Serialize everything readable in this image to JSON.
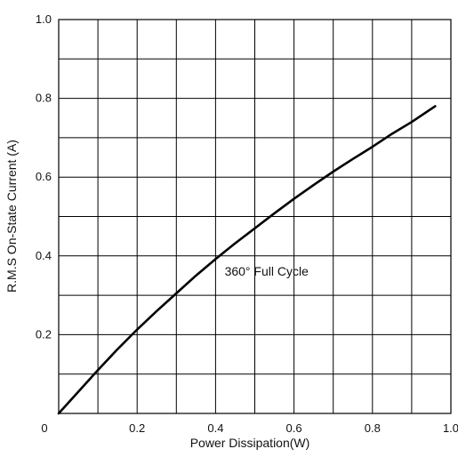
{
  "chart_data": {
    "type": "line",
    "title": "",
    "xlabel": "Power Dissipation(W)",
    "ylabel": "R.M.S On-State Current (A)",
    "xlim": [
      0,
      1.0
    ],
    "ylim": [
      0,
      1.0
    ],
    "grid": true,
    "x_grid_step": 0.1,
    "y_grid_step": 0.1,
    "x_ticks": [
      {
        "value": 0,
        "label": "0"
      },
      {
        "value": 0.2,
        "label": "0.2"
      },
      {
        "value": 0.4,
        "label": "0.4"
      },
      {
        "value": 0.6,
        "label": "0.6"
      },
      {
        "value": 0.8,
        "label": "0.8"
      },
      {
        "value": 1.0,
        "label": "1.0"
      }
    ],
    "y_ticks": [
      {
        "value": 0.2,
        "label": "0.2"
      },
      {
        "value": 0.4,
        "label": "0.4"
      },
      {
        "value": 0.6,
        "label": "0.6"
      },
      {
        "value": 0.8,
        "label": "0.8"
      },
      {
        "value": 1.0,
        "label": "1.0"
      }
    ],
    "series": [
      {
        "color": "#000000",
        "x": [
          0,
          0.05,
          0.1,
          0.15,
          0.2,
          0.25,
          0.3,
          0.35,
          0.4,
          0.45,
          0.5,
          0.55,
          0.6,
          0.65,
          0.7,
          0.75,
          0.8,
          0.85,
          0.9,
          0.96
        ],
        "y": [
          0,
          0.055,
          0.11,
          0.163,
          0.213,
          0.26,
          0.305,
          0.35,
          0.392,
          0.432,
          0.47,
          0.508,
          0.545,
          0.58,
          0.614,
          0.646,
          0.677,
          0.71,
          0.74,
          0.78
        ]
      }
    ],
    "annotations": [
      {
        "text": "360° Full Cycle",
        "x": 0.53,
        "y": 0.35
      }
    ]
  }
}
